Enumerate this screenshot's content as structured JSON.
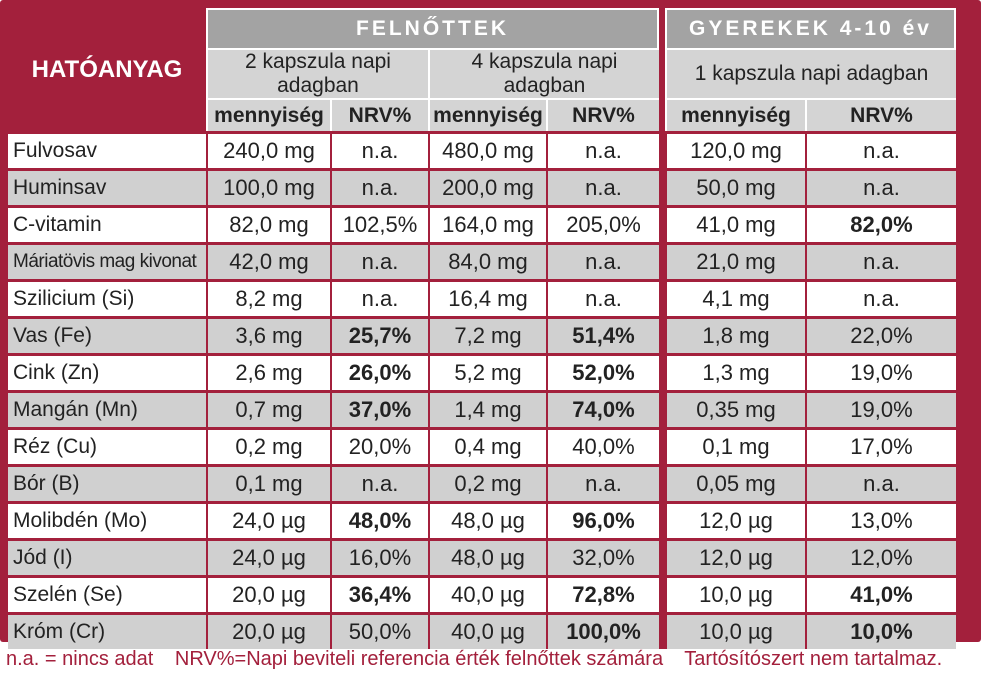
{
  "header": {
    "hatoanyag": "HATÓANYAG",
    "group_adults": "FELNŐTTEK",
    "group_kids": "GYEREKEK 4-10 év",
    "sub_2caps": "2 kapszula napi adagban",
    "sub_4caps": "4 kapszula napi adagban",
    "sub_1caps": "1 kapszula napi adagban",
    "col_amount": "mennyiség",
    "col_nrv": "NRV%"
  },
  "rows": [
    {
      "name": "Fulvosav",
      "a2": "240,0 mg",
      "n2": "n.a.",
      "a4": "480,0 mg",
      "n4": "n.a.",
      "a1": "120,0 mg",
      "n1": "n.a."
    },
    {
      "name": "Huminsav",
      "a2": "100,0 mg",
      "n2": "n.a.",
      "a4": "200,0 mg",
      "n4": "n.a.",
      "a1": "50,0 mg",
      "n1": "n.a."
    },
    {
      "name": "C-vitamin",
      "a2": "82,0 mg",
      "n2": "102,5%",
      "a4": "164,0 mg",
      "n4": "205,0%",
      "a1": "41,0 mg",
      "n1": "82,0%"
    },
    {
      "name": "Máriatövis mag kivonat",
      "a2": "42,0 mg",
      "n2": "n.a.",
      "a4": "84,0 mg",
      "n4": "n.a.",
      "a1": "21,0 mg",
      "n1": "n.a."
    },
    {
      "name": "Szilicium (Si)",
      "a2": "8,2 mg",
      "n2": "n.a.",
      "a4": "16,4 mg",
      "n4": "n.a.",
      "a1": "4,1 mg",
      "n1": "n.a."
    },
    {
      "name": "Vas (Fe)",
      "a2": "3,6 mg",
      "n2": "25,7%",
      "a4": "7,2 mg",
      "n4": "51,4%",
      "a1": "1,8 mg",
      "n1": "22,0%"
    },
    {
      "name": "Cink (Zn)",
      "a2": "2,6 mg",
      "n2": "26,0%",
      "a4": "5,2 mg",
      "n4": "52,0%",
      "a1": "1,3 mg",
      "n1": "19,0%"
    },
    {
      "name": "Mangán (Mn)",
      "a2": "0,7 mg",
      "n2": "37,0%",
      "a4": "1,4 mg",
      "n4": "74,0%",
      "a1": "0,35 mg",
      "n1": "19,0%"
    },
    {
      "name": "Réz (Cu)",
      "a2": "0,2 mg",
      "n2": "20,0%",
      "a4": "0,4 mg",
      "n4": "40,0%",
      "a1": "0,1 mg",
      "n1": "17,0%"
    },
    {
      "name": "Bór (B)",
      "a2": "0,1 mg",
      "n2": "n.a.",
      "a4": "0,2 mg",
      "n4": "n.a.",
      "a1": "0,05 mg",
      "n1": "n.a."
    },
    {
      "name": "Molibdén (Mo)",
      "a2": "24,0 µg",
      "n2": "48,0%",
      "a4": "48,0 µg",
      "n4": "96,0%",
      "a1": "12,0 µg",
      "n1": "13,0%"
    },
    {
      "name": "Jód (I)",
      "a2": "24,0 µg",
      "n2": "16,0%",
      "a4": "48,0 µg",
      "n4": "32,0%",
      "a1": "12,0 µg",
      "n1": "12,0%"
    },
    {
      "name": "Szelén (Se)",
      "a2": "20,0 µg",
      "n2": "36,4%",
      "a4": "40,0 µg",
      "n4": "72,8%",
      "a1": "10,0 µg",
      "n1": "41,0%"
    },
    {
      "name": "Króm (Cr)",
      "a2": "20,0 µg",
      "n2": "50,0%",
      "a4": "40,0 µg",
      "n4": "100,0%",
      "a1": "10,0 µg",
      "n1": "10,0%"
    }
  ],
  "footnote": {
    "na": "n.a. = nincs adat",
    "nrv": "NRV%=Napi beviteli referencia érték felnőttek számára",
    "preservative": "Tartósítószert nem tartalmaz."
  },
  "colors": {
    "frame": "#a3203c",
    "header_gray": "#a3a3a3",
    "light_gray": "#d4d4d4",
    "row_gray": "#d0d0d0"
  }
}
